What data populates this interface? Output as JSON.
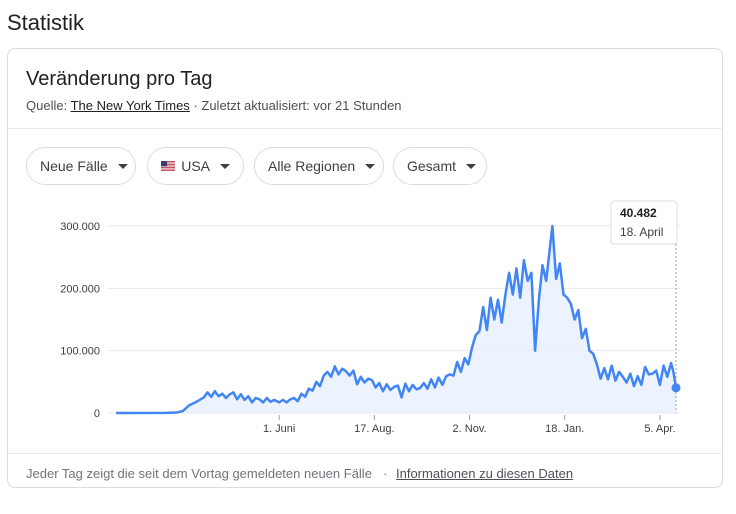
{
  "page": {
    "heading": "Statistik"
  },
  "card": {
    "title": "Veränderung pro Tag",
    "source_prefix": "Quelle:",
    "source_name": "The New York Times",
    "source_suffix": "· Zuletzt aktualisiert: vor 21 Stunden"
  },
  "filters": {
    "metric": "Neue Fälle",
    "country": "USA",
    "region": "Alle Regionen",
    "range": "Gesamt"
  },
  "tooltip": {
    "value": "40.482",
    "date": "18. April"
  },
  "footer": {
    "note": "Jeder Tag zeigt die seit dem Vortag gemeldeten neuen Fälle",
    "separator": "·",
    "link": "Informationen zu diesen Daten"
  },
  "colors": {
    "line": "#4285f4",
    "area": "#e8f0fe",
    "grid": "#e8eaed"
  },
  "chart_data": {
    "type": "area",
    "title": "",
    "xlabel": "",
    "ylabel": "",
    "ylim": [
      0,
      300000
    ],
    "yticks": [
      0,
      100000,
      200000,
      300000
    ],
    "ytick_labels": [
      "0",
      "100.000",
      "200.000",
      "300.000"
    ],
    "xticks": [
      "2020-06-01",
      "2020-08-17",
      "2020-11-02",
      "2021-01-18",
      "2021-04-05"
    ],
    "xtick_labels": [
      "1. Juni",
      "17. Aug.",
      "2. Nov.",
      "18. Jan.",
      "5. Apr."
    ],
    "grid": true,
    "x_start": "2020-01-21",
    "x_end": "2021-04-18",
    "series": [
      {
        "points": [
          [
            "2020-01-21",
            0
          ],
          [
            "2020-03-01",
            100
          ],
          [
            "2020-03-10",
            800
          ],
          [
            "2020-03-15",
            3000
          ],
          [
            "2020-03-20",
            12000
          ],
          [
            "2020-03-26",
            18000
          ],
          [
            "2020-04-01",
            25000
          ],
          [
            "2020-04-04",
            33000
          ],
          [
            "2020-04-07",
            26000
          ],
          [
            "2020-04-10",
            35000
          ],
          [
            "2020-04-13",
            27000
          ],
          [
            "2020-04-16",
            31000
          ],
          [
            "2020-04-19",
            24000
          ],
          [
            "2020-04-22",
            30000
          ],
          [
            "2020-04-25",
            33000
          ],
          [
            "2020-04-28",
            22000
          ],
          [
            "2020-05-01",
            30000
          ],
          [
            "2020-05-04",
            21000
          ],
          [
            "2020-05-07",
            27000
          ],
          [
            "2020-05-10",
            17000
          ],
          [
            "2020-05-13",
            24000
          ],
          [
            "2020-05-16",
            22000
          ],
          [
            "2020-05-19",
            17000
          ],
          [
            "2020-05-22",
            24000
          ],
          [
            "2020-05-25",
            18000
          ],
          [
            "2020-05-28",
            21000
          ],
          [
            "2020-06-01",
            17000
          ],
          [
            "2020-06-04",
            21000
          ],
          [
            "2020-06-07",
            17000
          ],
          [
            "2020-06-10",
            22000
          ],
          [
            "2020-06-13",
            24000
          ],
          [
            "2020-06-16",
            19000
          ],
          [
            "2020-06-19",
            31000
          ],
          [
            "2020-06-22",
            26000
          ],
          [
            "2020-06-25",
            39000
          ],
          [
            "2020-06-28",
            36000
          ],
          [
            "2020-07-01",
            50000
          ],
          [
            "2020-07-04",
            43000
          ],
          [
            "2020-07-07",
            60000
          ],
          [
            "2020-07-10",
            66000
          ],
          [
            "2020-07-13",
            58000
          ],
          [
            "2020-07-16",
            75000
          ],
          [
            "2020-07-19",
            62000
          ],
          [
            "2020-07-22",
            71000
          ],
          [
            "2020-07-25",
            67000
          ],
          [
            "2020-07-28",
            60000
          ],
          [
            "2020-07-31",
            68000
          ],
          [
            "2020-08-03",
            46000
          ],
          [
            "2020-08-06",
            58000
          ],
          [
            "2020-08-09",
            49000
          ],
          [
            "2020-08-12",
            55000
          ],
          [
            "2020-08-15",
            53000
          ],
          [
            "2020-08-18",
            41000
          ],
          [
            "2020-08-21",
            48000
          ],
          [
            "2020-08-24",
            35000
          ],
          [
            "2020-08-27",
            46000
          ],
          [
            "2020-08-30",
            37000
          ],
          [
            "2020-09-02",
            42000
          ],
          [
            "2020-09-05",
            44000
          ],
          [
            "2020-09-08",
            25000
          ],
          [
            "2020-09-11",
            47000
          ],
          [
            "2020-09-14",
            35000
          ],
          [
            "2020-09-17",
            45000
          ],
          [
            "2020-09-20",
            38000
          ],
          [
            "2020-09-23",
            40000
          ],
          [
            "2020-09-26",
            48000
          ],
          [
            "2020-09-29",
            39000
          ],
          [
            "2020-10-02",
            54000
          ],
          [
            "2020-10-05",
            41000
          ],
          [
            "2020-10-08",
            57000
          ],
          [
            "2020-10-11",
            45000
          ],
          [
            "2020-10-14",
            59000
          ],
          [
            "2020-10-17",
            62000
          ],
          [
            "2020-10-20",
            60000
          ],
          [
            "2020-10-23",
            82000
          ],
          [
            "2020-10-26",
            66000
          ],
          [
            "2020-10-29",
            88000
          ],
          [
            "2020-11-01",
            78000
          ],
          [
            "2020-11-04",
            105000
          ],
          [
            "2020-11-07",
            125000
          ],
          [
            "2020-11-10",
            131000
          ],
          [
            "2020-11-13",
            170000
          ],
          [
            "2020-11-16",
            133000
          ],
          [
            "2020-11-19",
            185000
          ],
          [
            "2020-11-22",
            150000
          ],
          [
            "2020-11-25",
            182000
          ],
          [
            "2020-11-28",
            145000
          ],
          [
            "2020-12-01",
            190000
          ],
          [
            "2020-12-04",
            225000
          ],
          [
            "2020-12-07",
            190000
          ],
          [
            "2020-12-10",
            232000
          ],
          [
            "2020-12-13",
            185000
          ],
          [
            "2020-12-16",
            245000
          ],
          [
            "2020-12-19",
            212000
          ],
          [
            "2020-12-22",
            225000
          ],
          [
            "2020-12-25",
            100000
          ],
          [
            "2020-12-28",
            180000
          ],
          [
            "2020-12-31",
            237000
          ],
          [
            "2021-01-03",
            212000
          ],
          [
            "2021-01-06",
            265000
          ],
          [
            "2021-01-08",
            300000
          ],
          [
            "2021-01-11",
            215000
          ],
          [
            "2021-01-14",
            240000
          ],
          [
            "2021-01-17",
            190000
          ],
          [
            "2021-01-20",
            185000
          ],
          [
            "2021-01-23",
            175000
          ],
          [
            "2021-01-26",
            150000
          ],
          [
            "2021-01-29",
            165000
          ],
          [
            "2021-02-01",
            120000
          ],
          [
            "2021-02-04",
            135000
          ],
          [
            "2021-02-07",
            100000
          ],
          [
            "2021-02-10",
            95000
          ],
          [
            "2021-02-13",
            78000
          ],
          [
            "2021-02-16",
            55000
          ],
          [
            "2021-02-19",
            72000
          ],
          [
            "2021-02-22",
            54000
          ],
          [
            "2021-02-25",
            76000
          ],
          [
            "2021-02-28",
            52000
          ],
          [
            "2021-03-03",
            66000
          ],
          [
            "2021-03-06",
            58000
          ],
          [
            "2021-03-09",
            49000
          ],
          [
            "2021-03-12",
            63000
          ],
          [
            "2021-03-15",
            43000
          ],
          [
            "2021-03-18",
            59000
          ],
          [
            "2021-03-21",
            45000
          ],
          [
            "2021-03-24",
            74000
          ],
          [
            "2021-03-27",
            62000
          ],
          [
            "2021-03-30",
            63000
          ],
          [
            "2021-04-02",
            68000
          ],
          [
            "2021-04-05",
            45000
          ],
          [
            "2021-04-08",
            76000
          ],
          [
            "2021-04-11",
            58000
          ],
          [
            "2021-04-14",
            80000
          ],
          [
            "2021-04-16",
            65000
          ],
          [
            "2021-04-18",
            40482
          ]
        ]
      }
    ]
  }
}
